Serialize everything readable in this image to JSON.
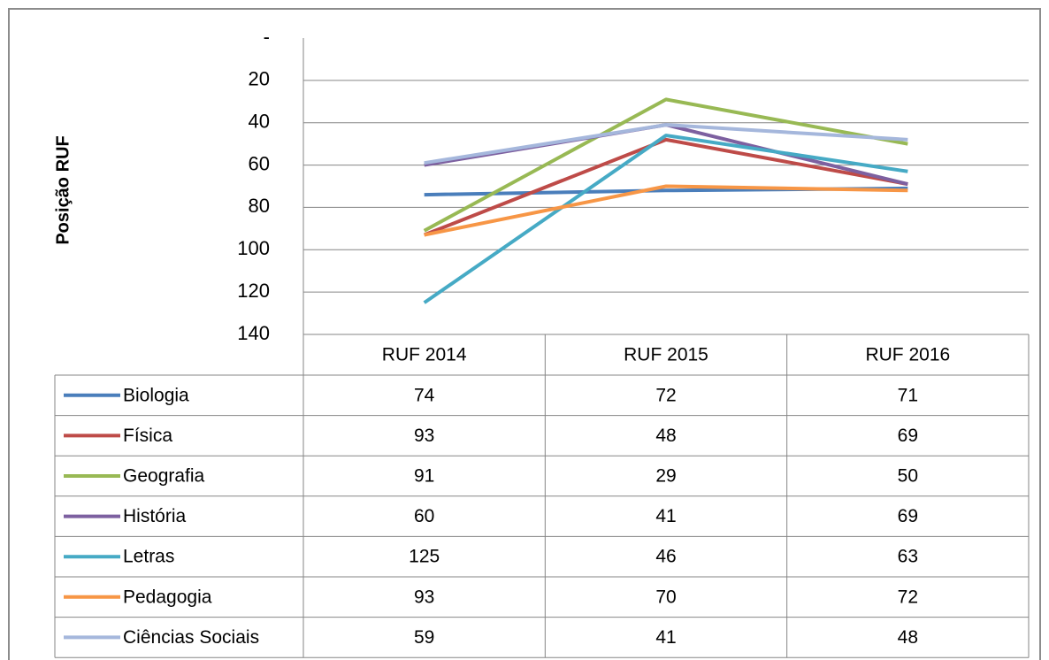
{
  "chart_data": {
    "type": "line",
    "y_label": "Posição RUF",
    "categories": [
      "RUF 2014",
      "RUF 2015",
      "RUF 2016"
    ],
    "ylim": [
      0,
      140
    ],
    "y_reversed": true,
    "yticks": [
      {
        "value": 0,
        "label": "-"
      },
      20,
      40,
      60,
      80,
      100,
      120,
      140
    ],
    "grid": true,
    "series": [
      {
        "name": "Biologia",
        "color": "#4a7ebb",
        "values": [
          74,
          72,
          71
        ]
      },
      {
        "name": "Física",
        "color": "#be4b48",
        "values": [
          93,
          48,
          69
        ]
      },
      {
        "name": "Geografia",
        "color": "#98b954",
        "values": [
          91,
          29,
          50
        ]
      },
      {
        "name": "História",
        "color": "#7d60a0",
        "values": [
          60,
          41,
          69
        ]
      },
      {
        "name": "Letras",
        "color": "#46aac5",
        "values": [
          125,
          46,
          63
        ]
      },
      {
        "name": "Pedagogia",
        "color": "#f79646",
        "values": [
          93,
          70,
          72
        ]
      },
      {
        "name": "Ciências Sociais",
        "color": "#a5b7dc",
        "values": [
          59,
          41,
          48
        ]
      }
    ]
  }
}
